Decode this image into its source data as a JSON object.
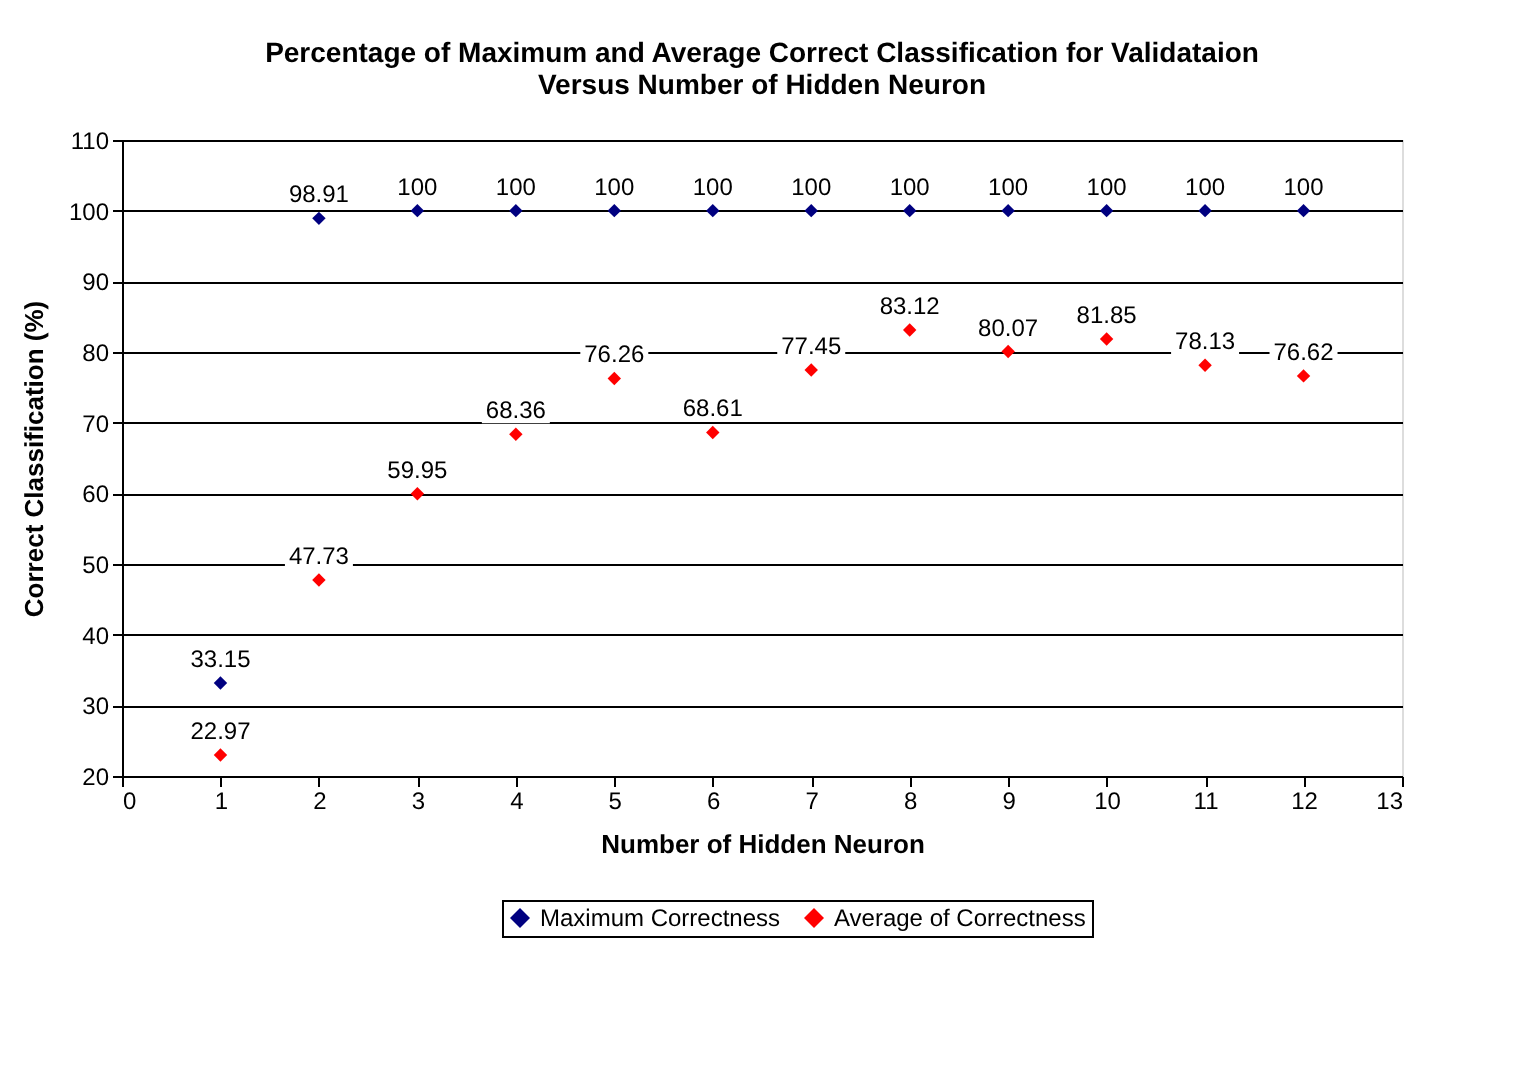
{
  "chart_data": {
    "type": "scatter",
    "title": "Percentage of Maximum and Average Correct Classification for Validataion Versus Number of Hidden Neuron",
    "xlabel": "Number of Hidden Neuron",
    "ylabel": "Correct Classification (%)",
    "x": [
      1,
      2,
      3,
      4,
      5,
      6,
      7,
      8,
      9,
      10,
      11,
      12
    ],
    "series": [
      {
        "name": "Maximum Correctness",
        "color": "#000080",
        "values": [
          33.15,
          98.91,
          100,
          100,
          100,
          100,
          100,
          100,
          100,
          100,
          100,
          100
        ]
      },
      {
        "name": "Average of Correctness",
        "color": "#ff0000",
        "values": [
          22.97,
          47.73,
          59.95,
          68.36,
          76.26,
          68.61,
          77.45,
          83.12,
          80.07,
          81.85,
          78.13,
          76.62
        ]
      }
    ],
    "xlim": [
      0,
      13
    ],
    "xticks": [
      0,
      1,
      2,
      3,
      4,
      5,
      6,
      7,
      8,
      9,
      10,
      11,
      12,
      13
    ],
    "ylim": [
      20,
      110
    ],
    "yticks": [
      20,
      30,
      40,
      50,
      60,
      70,
      80,
      90,
      100,
      110
    ],
    "grid": "y",
    "legend": "bottom",
    "marker": "diamond",
    "data_labels": true
  }
}
